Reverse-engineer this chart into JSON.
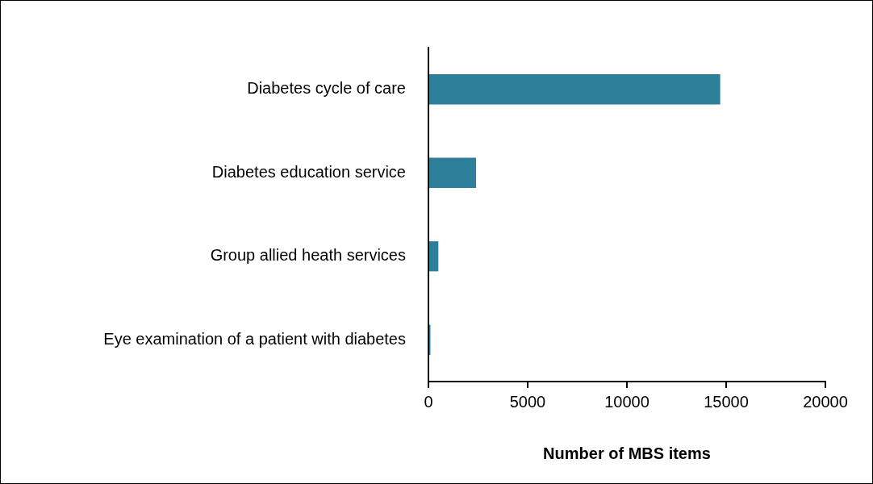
{
  "chart_data": {
    "type": "bar",
    "orientation": "horizontal",
    "categories": [
      "Diabetes cycle of care",
      "Diabetes education service",
      "Group allied heath services",
      "Eye examination of a patient with diabetes"
    ],
    "values": [
      14700,
      2400,
      500,
      100
    ],
    "color": "#2e7f99",
    "xlabel": "Number of MBS items",
    "xlim": [
      0,
      20000
    ],
    "xticks": [
      0,
      5000,
      10000,
      15000,
      20000
    ]
  }
}
